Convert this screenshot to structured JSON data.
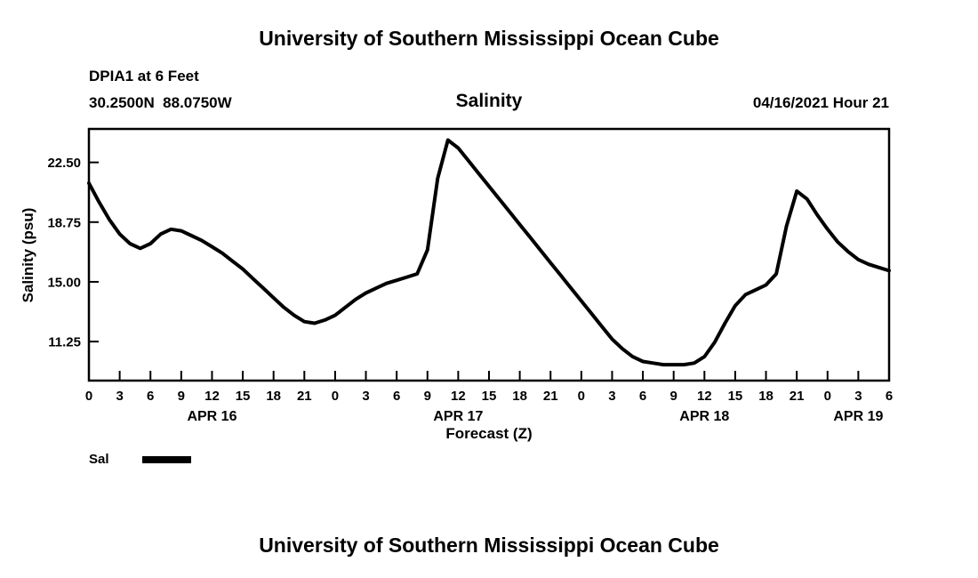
{
  "page": {
    "title_top": "University of Southern Mississippi Ocean Cube",
    "title_bottom": "University of Southern Mississippi Ocean Cube"
  },
  "header": {
    "station": "DPIA1 at 6 Feet",
    "coordinates": "30.2500N  88.0750W",
    "subtitle": "Salinity",
    "datetime": "04/16/2021 Hour 21"
  },
  "legend": {
    "label": "Sal"
  },
  "chart_data": {
    "type": "line",
    "title": "Salinity",
    "subtitle_station": "DPIA1 at 6 Feet",
    "xlabel": "Forecast (Z)",
    "ylabel": "Salinity (psu)",
    "series_name": "Sal",
    "line_color": "#000000",
    "line_width": 4,
    "grid": false,
    "legend_position": "bottom-left",
    "xlim": [
      0,
      78
    ],
    "ylim": [
      8.8,
      24.6
    ],
    "x_hours": [
      0,
      1,
      2,
      3,
      4,
      5,
      6,
      7,
      8,
      9,
      10,
      11,
      12,
      13,
      14,
      15,
      16,
      17,
      18,
      19,
      20,
      21,
      22,
      23,
      24,
      25,
      26,
      27,
      28,
      29,
      30,
      31,
      32,
      33,
      34,
      35,
      36,
      37,
      38,
      39,
      40,
      41,
      42,
      43,
      44,
      45,
      46,
      47,
      48,
      49,
      50,
      51,
      52,
      53,
      54,
      55,
      56,
      57,
      58,
      59,
      60,
      61,
      62,
      63,
      64,
      65,
      66,
      67,
      68,
      69,
      70,
      71,
      72,
      73,
      74,
      75,
      76,
      77,
      78
    ],
    "values": [
      21.2,
      20.0,
      18.9,
      18.0,
      17.4,
      17.1,
      17.4,
      18.0,
      18.3,
      18.2,
      17.9,
      17.6,
      17.2,
      16.8,
      16.3,
      15.8,
      15.2,
      14.6,
      14.0,
      13.4,
      12.9,
      12.5,
      12.4,
      12.6,
      12.9,
      13.4,
      13.9,
      14.3,
      14.6,
      14.9,
      15.1,
      15.3,
      15.5,
      17.0,
      21.5,
      23.9,
      23.4,
      22.6,
      21.8,
      21.0,
      20.2,
      19.4,
      18.6,
      17.8,
      17.0,
      16.2,
      15.4,
      14.6,
      13.8,
      13.0,
      12.2,
      11.4,
      10.8,
      10.3,
      10.0,
      9.9,
      9.8,
      9.8,
      9.8,
      9.9,
      10.3,
      11.2,
      12.4,
      13.5,
      14.2,
      14.5,
      14.8,
      15.5,
      18.5,
      20.7,
      20.2,
      19.2,
      18.3,
      17.5,
      16.9,
      16.4,
      16.1,
      15.9,
      15.7
    ],
    "yticks": [
      {
        "value": 11.25,
        "label": "11.25"
      },
      {
        "value": 15.0,
        "label": "15.00"
      },
      {
        "value": 18.75,
        "label": "18.75"
      },
      {
        "value": 22.5,
        "label": "22.50"
      }
    ],
    "xticks": [
      {
        "hour": 0,
        "label": "0"
      },
      {
        "hour": 3,
        "label": "3"
      },
      {
        "hour": 6,
        "label": "6"
      },
      {
        "hour": 9,
        "label": "9"
      },
      {
        "hour": 12,
        "label": "12"
      },
      {
        "hour": 15,
        "label": "15"
      },
      {
        "hour": 18,
        "label": "18"
      },
      {
        "hour": 21,
        "label": "21"
      },
      {
        "hour": 24,
        "label": "0"
      },
      {
        "hour": 27,
        "label": "3"
      },
      {
        "hour": 30,
        "label": "6"
      },
      {
        "hour": 33,
        "label": "9"
      },
      {
        "hour": 36,
        "label": "12"
      },
      {
        "hour": 39,
        "label": "15"
      },
      {
        "hour": 42,
        "label": "18"
      },
      {
        "hour": 45,
        "label": "21"
      },
      {
        "hour": 48,
        "label": "0"
      },
      {
        "hour": 51,
        "label": "3"
      },
      {
        "hour": 54,
        "label": "6"
      },
      {
        "hour": 57,
        "label": "9"
      },
      {
        "hour": 60,
        "label": "12"
      },
      {
        "hour": 63,
        "label": "15"
      },
      {
        "hour": 66,
        "label": "18"
      },
      {
        "hour": 69,
        "label": "21"
      },
      {
        "hour": 72,
        "label": "0"
      },
      {
        "hour": 75,
        "label": "3"
      },
      {
        "hour": 78,
        "label": "6"
      }
    ],
    "day_labels": [
      {
        "hour": 12,
        "label": "APR 16"
      },
      {
        "hour": 36,
        "label": "APR 17"
      },
      {
        "hour": 60,
        "label": "APR 18"
      },
      {
        "hour": 75,
        "label": "APR 19"
      }
    ]
  }
}
